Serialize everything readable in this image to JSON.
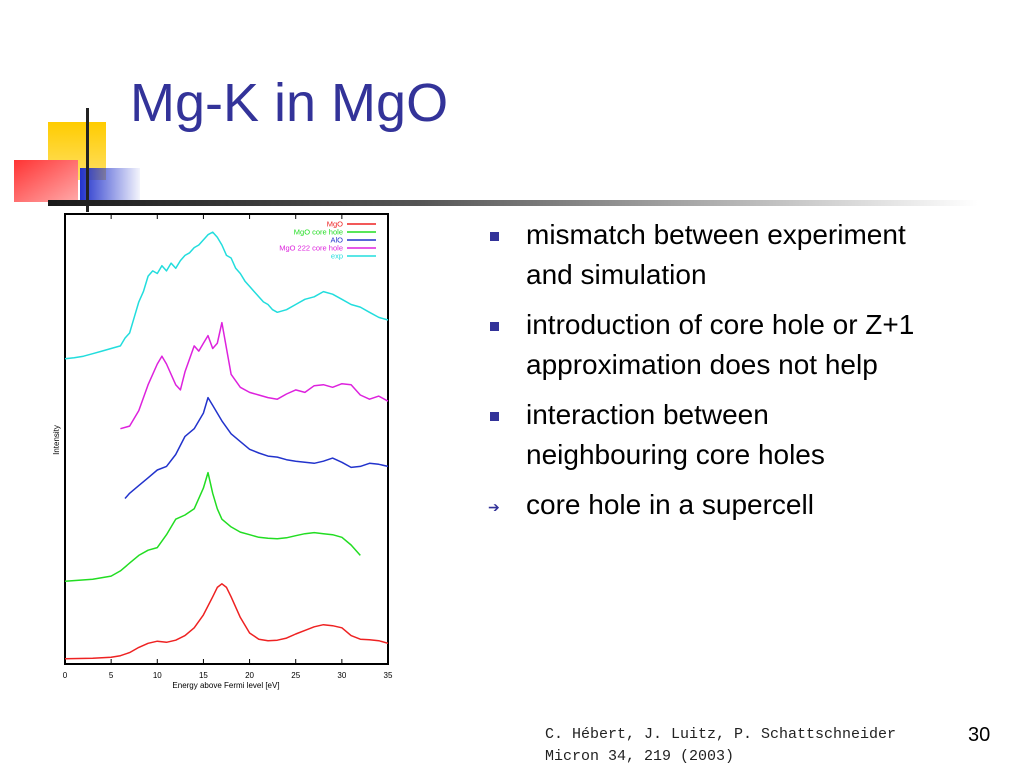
{
  "slide": {
    "title": "Mg-K in MgO",
    "number": "30"
  },
  "bullets": [
    {
      "text": "mismatch between experiment and simulation",
      "marker": "square"
    },
    {
      "text": "introduction of core hole or Z+1 approximation does not help",
      "marker": "square"
    },
    {
      "text": "interaction between neighbouring core holes",
      "marker": "square"
    },
    {
      "text": "core hole in a supercell",
      "marker": "arrow"
    }
  ],
  "citation": {
    "line1": "C. Hébert, J. Luitz, P. Schattschneider",
    "line2": "Micron 34, 219 (2003)"
  },
  "colors": {
    "title": "#333399",
    "bullet": "#333399",
    "deco_yellow": "#ffcc00",
    "deco_red": "#ff3333",
    "deco_blue": "#3333cc"
  },
  "chart_data": {
    "type": "line",
    "xlabel": "Energy above Fermi level [eV]",
    "ylabel": "Intensity",
    "xlim": [
      0,
      35
    ],
    "xticks": [
      0,
      5,
      10,
      15,
      20,
      25,
      30,
      35
    ],
    "legend_position": "top-right",
    "series": [
      {
        "name": "MgO",
        "color": "#ee2222",
        "offset": 0,
        "x": [
          0,
          3,
          5,
          6,
          7,
          8,
          9,
          10,
          11,
          12,
          13,
          14,
          15,
          16,
          16.5,
          17,
          17.5,
          18,
          19,
          20,
          21,
          22,
          23,
          24,
          25,
          26,
          27,
          28,
          29,
          30,
          31,
          32,
          33,
          34,
          35
        ],
        "y": [
          0,
          0.01,
          0.03,
          0.06,
          0.12,
          0.22,
          0.3,
          0.34,
          0.32,
          0.36,
          0.45,
          0.6,
          0.85,
          1.2,
          1.38,
          1.45,
          1.38,
          1.2,
          0.8,
          0.5,
          0.38,
          0.35,
          0.36,
          0.4,
          0.48,
          0.55,
          0.62,
          0.66,
          0.64,
          0.6,
          0.45,
          0.38,
          0.37,
          0.35,
          0.3
        ]
      },
      {
        "name": "MgO core hole",
        "color": "#22dd22",
        "offset": 0,
        "x": [
          0,
          3,
          5,
          6,
          7,
          8,
          9,
          10,
          11,
          12,
          13,
          14,
          15,
          15.5,
          16,
          16.5,
          17,
          18,
          19,
          20,
          21,
          22,
          23,
          24,
          25,
          26,
          27,
          28,
          29,
          30,
          31,
          32
        ],
        "y": [
          1.5,
          1.54,
          1.6,
          1.7,
          1.85,
          2.0,
          2.1,
          2.15,
          2.4,
          2.7,
          2.78,
          2.9,
          3.3,
          3.6,
          3.2,
          2.9,
          2.7,
          2.55,
          2.45,
          2.4,
          2.35,
          2.33,
          2.32,
          2.34,
          2.38,
          2.42,
          2.44,
          2.42,
          2.4,
          2.35,
          2.2,
          2.0
        ]
      },
      {
        "name": "AlO",
        "color": "#2233cc",
        "offset": 0,
        "x": [
          6.5,
          7,
          8,
          9,
          10,
          11,
          12,
          13,
          14,
          15,
          15.5,
          16,
          17,
          18,
          19,
          20,
          21,
          22,
          23,
          24,
          25,
          26,
          27,
          28,
          29,
          30,
          31,
          32,
          33,
          34,
          35
        ],
        "y": [
          3.1,
          3.2,
          3.35,
          3.5,
          3.65,
          3.72,
          3.95,
          4.3,
          4.45,
          4.75,
          5.05,
          4.9,
          4.6,
          4.35,
          4.2,
          4.05,
          3.98,
          3.92,
          3.9,
          3.85,
          3.82,
          3.8,
          3.78,
          3.82,
          3.88,
          3.8,
          3.7,
          3.72,
          3.78,
          3.76,
          3.72
        ]
      },
      {
        "name": "MgO  222 core hole",
        "color": "#dd22dd",
        "offset": 0,
        "x": [
          6,
          7,
          8,
          9,
          10,
          10.5,
          11,
          12,
          12.5,
          13,
          14,
          14.5,
          15,
          15.5,
          16,
          16.5,
          17,
          17.5,
          18,
          19,
          20,
          21,
          22,
          23,
          24,
          25,
          26,
          27,
          28,
          29,
          30,
          31,
          32,
          33,
          34,
          35
        ],
        "y": [
          4.45,
          4.5,
          4.8,
          5.3,
          5.7,
          5.85,
          5.7,
          5.3,
          5.2,
          5.55,
          6.05,
          5.95,
          6.1,
          6.25,
          6.0,
          6.1,
          6.5,
          6.0,
          5.5,
          5.25,
          5.15,
          5.1,
          5.05,
          5.02,
          5.12,
          5.2,
          5.15,
          5.28,
          5.3,
          5.25,
          5.32,
          5.3,
          5.1,
          5.02,
          5.08,
          4.98
        ]
      },
      {
        "name": "exp",
        "color": "#22dddd",
        "offset": 0,
        "x": [
          0,
          1,
          2,
          3,
          4,
          5,
          6,
          6.5,
          7,
          7.5,
          8,
          8.5,
          9,
          9.5,
          10,
          10.5,
          11,
          11.5,
          12,
          12.5,
          13,
          13.5,
          14,
          14.5,
          15,
          15.5,
          16,
          16.5,
          17,
          17.5,
          18,
          18.5,
          19,
          19.5,
          20,
          20.5,
          21,
          21.5,
          22,
          22.5,
          23,
          24,
          25,
          26,
          27,
          28,
          29,
          30,
          31,
          32,
          33,
          34,
          35
        ],
        "y": [
          5.8,
          5.82,
          5.85,
          5.9,
          5.95,
          6.0,
          6.05,
          6.2,
          6.3,
          6.6,
          6.9,
          7.1,
          7.4,
          7.5,
          7.45,
          7.6,
          7.5,
          7.65,
          7.55,
          7.7,
          7.8,
          7.85,
          7.95,
          8.0,
          8.1,
          8.2,
          8.25,
          8.15,
          8.0,
          7.8,
          7.75,
          7.55,
          7.45,
          7.3,
          7.2,
          7.1,
          7.0,
          6.9,
          6.85,
          6.75,
          6.7,
          6.75,
          6.85,
          6.95,
          7.0,
          7.1,
          7.05,
          6.95,
          6.85,
          6.8,
          6.7,
          6.6,
          6.55
        ]
      }
    ]
  }
}
